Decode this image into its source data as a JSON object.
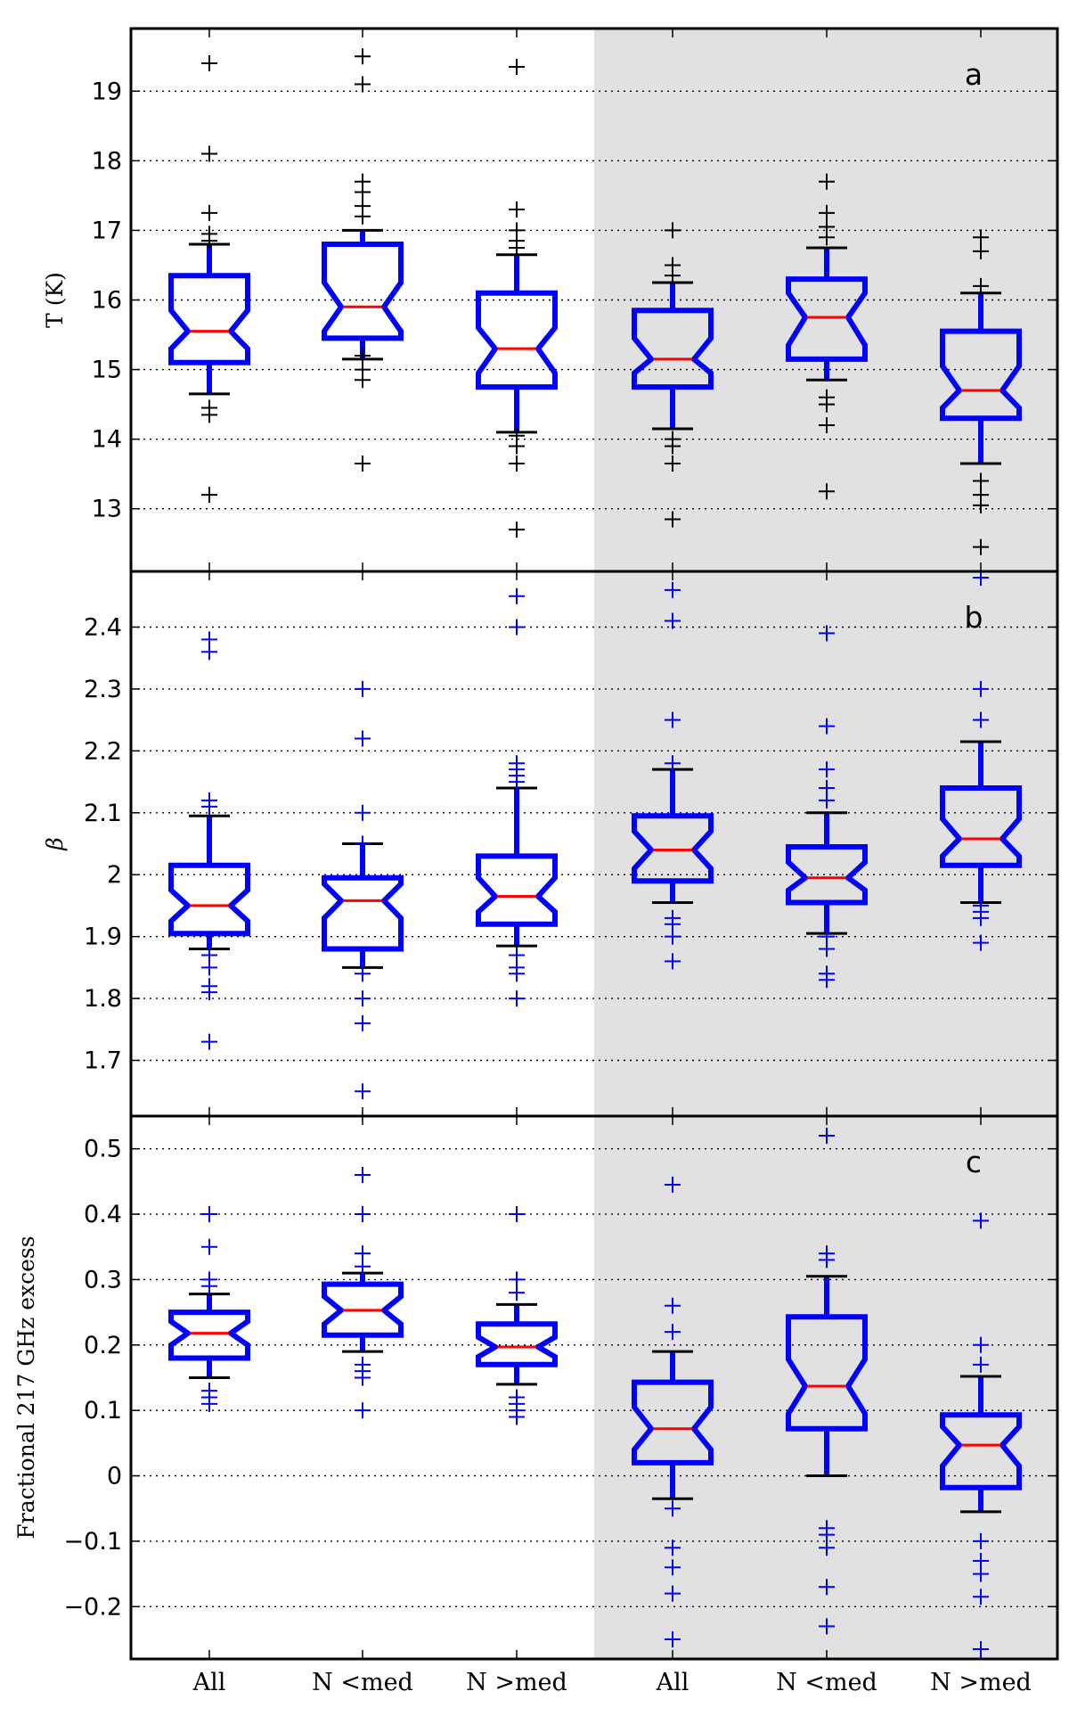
{
  "chart_data": [
    {
      "type": "boxplot",
      "panel_label": "a",
      "ylabel": "T (K)",
      "ylim": [
        12.1,
        19.9
      ],
      "yticks": [
        13,
        14,
        15,
        16,
        17,
        18,
        19
      ],
      "categories": [
        "All",
        "N <med",
        "N >med",
        "All",
        "N <med",
        "N >med"
      ],
      "shaded_categories": [
        3,
        4,
        5
      ],
      "grid": true,
      "marker_color": "#000000",
      "boxes": [
        {
          "q1": 15.1,
          "median": 15.55,
          "q3": 16.35,
          "notch_low": 15.3,
          "notch_high": 15.85,
          "whisker_low": 14.65,
          "whisker_high": 16.8,
          "fliers": [
            19.4,
            18.1,
            17.25,
            16.95,
            16.85,
            14.45,
            14.35,
            13.2
          ]
        },
        {
          "q1": 15.45,
          "median": 15.9,
          "q3": 16.8,
          "notch_low": 15.55,
          "notch_high": 16.25,
          "whisker_low": 15.15,
          "whisker_high": 17.0,
          "fliers": [
            19.5,
            19.1,
            17.7,
            17.55,
            17.35,
            17.2,
            15.2,
            15.0,
            14.85,
            13.65
          ]
        },
        {
          "q1": 14.75,
          "median": 15.3,
          "q3": 16.1,
          "notch_low": 14.95,
          "notch_high": 15.6,
          "whisker_low": 14.1,
          "whisker_high": 16.65,
          "fliers": [
            19.35,
            17.3,
            17.0,
            16.85,
            16.75,
            14.05,
            13.9,
            13.65,
            12.7
          ]
        },
        {
          "q1": 14.75,
          "median": 15.15,
          "q3": 15.85,
          "notch_low": 14.95,
          "notch_high": 15.45,
          "whisker_low": 14.15,
          "whisker_high": 16.25,
          "fliers": [
            17.0,
            16.5,
            16.35,
            14.0,
            13.9,
            13.65,
            12.85
          ]
        },
        {
          "q1": 15.15,
          "median": 15.75,
          "q3": 16.3,
          "notch_low": 15.35,
          "notch_high": 16.1,
          "whisker_low": 14.85,
          "whisker_high": 16.75,
          "fliers": [
            17.7,
            17.25,
            17.05,
            16.9,
            14.6,
            14.5,
            14.2,
            13.25
          ]
        },
        {
          "q1": 14.3,
          "median": 14.7,
          "q3": 15.55,
          "notch_low": 14.45,
          "notch_high": 15.05,
          "whisker_low": 13.65,
          "whisker_high": 16.1,
          "fliers": [
            16.9,
            16.7,
            16.2,
            13.4,
            13.2,
            13.05,
            12.45
          ]
        }
      ]
    },
    {
      "type": "boxplot",
      "panel_label": "b",
      "ylabel": "β",
      "ylim": [
        1.61,
        2.49
      ],
      "yticks": [
        1.7,
        1.8,
        1.9,
        2.0,
        2.1,
        2.2,
        2.3,
        2.4
      ],
      "categories": [
        "All",
        "N <med",
        "N >med",
        "All",
        "N <med",
        "N >med"
      ],
      "shaded_categories": [
        3,
        4,
        5
      ],
      "grid": true,
      "marker_color": "#0000ff",
      "boxes": [
        {
          "q1": 1.905,
          "median": 1.95,
          "q3": 2.015,
          "notch_low": 1.925,
          "notch_high": 1.975,
          "whisker_low": 1.88,
          "whisker_high": 2.095,
          "fliers": [
            2.38,
            2.36,
            2.12,
            2.11,
            1.87,
            1.85,
            1.82,
            1.81,
            1.73
          ]
        },
        {
          "q1": 1.88,
          "median": 1.958,
          "q3": 1.995,
          "notch_low": 1.93,
          "notch_high": 1.985,
          "whisker_low": 1.85,
          "whisker_high": 2.05,
          "fliers": [
            2.3,
            2.22,
            2.1,
            2.05,
            1.84,
            1.8,
            1.76,
            1.65
          ]
        },
        {
          "q1": 1.92,
          "median": 1.965,
          "q3": 2.03,
          "notch_low": 1.94,
          "notch_high": 1.995,
          "whisker_low": 1.885,
          "whisker_high": 2.14,
          "fliers": [
            2.45,
            2.4,
            2.18,
            2.17,
            2.16,
            2.15,
            1.87,
            1.85,
            1.84,
            1.8
          ]
        },
        {
          "q1": 1.99,
          "median": 2.04,
          "q3": 2.095,
          "notch_low": 2.01,
          "notch_high": 2.07,
          "whisker_low": 1.955,
          "whisker_high": 2.17,
          "fliers": [
            2.46,
            2.41,
            2.25,
            2.18,
            1.93,
            1.92,
            1.9,
            1.86
          ]
        },
        {
          "q1": 1.955,
          "median": 1.995,
          "q3": 2.045,
          "notch_low": 1.975,
          "notch_high": 2.02,
          "whisker_low": 1.905,
          "whisker_high": 2.1,
          "fliers": [
            2.39,
            2.24,
            2.17,
            2.14,
            2.12,
            1.9,
            1.88,
            1.84,
            1.83
          ]
        },
        {
          "q1": 2.015,
          "median": 2.058,
          "q3": 2.14,
          "notch_low": 2.03,
          "notch_high": 2.09,
          "whisker_low": 1.955,
          "whisker_high": 2.215,
          "fliers": [
            2.48,
            2.3,
            2.25,
            1.95,
            1.94,
            1.93,
            1.89
          ]
        }
      ]
    },
    {
      "type": "boxplot",
      "panel_label": "c",
      "ylabel": "Fractional 217 GHz excess",
      "ylim": [
        -0.28,
        0.55
      ],
      "yticks": [
        -0.2,
        -0.1,
        0.0,
        0.1,
        0.2,
        0.3,
        0.4,
        0.5
      ],
      "categories": [
        "All",
        "N <med",
        "N >med",
        "All",
        "N <med",
        "N >med"
      ],
      "shaded_categories": [
        3,
        4,
        5
      ],
      "grid": true,
      "marker_color": "#0000ff",
      "boxes": [
        {
          "q1": 0.18,
          "median": 0.218,
          "q3": 0.25,
          "notch_low": 0.2,
          "notch_high": 0.236,
          "whisker_low": 0.15,
          "whisker_high": 0.278,
          "fliers": [
            0.4,
            0.35,
            0.3,
            0.29,
            0.13,
            0.12,
            0.11
          ]
        },
        {
          "q1": 0.215,
          "median": 0.253,
          "q3": 0.293,
          "notch_low": 0.232,
          "notch_high": 0.274,
          "whisker_low": 0.19,
          "whisker_high": 0.31,
          "fliers": [
            0.46,
            0.4,
            0.34,
            0.32,
            0.17,
            0.16,
            0.15,
            0.1
          ]
        },
        {
          "q1": 0.17,
          "median": 0.197,
          "q3": 0.232,
          "notch_low": 0.182,
          "notch_high": 0.212,
          "whisker_low": 0.14,
          "whisker_high": 0.262,
          "fliers": [
            0.4,
            0.3,
            0.28,
            0.12,
            0.11,
            0.1,
            0.09
          ]
        },
        {
          "q1": 0.02,
          "median": 0.072,
          "q3": 0.143,
          "notch_low": 0.04,
          "notch_high": 0.105,
          "whisker_low": -0.035,
          "whisker_high": 0.19,
          "fliers": [
            0.445,
            0.26,
            0.22,
            -0.05,
            -0.11,
            -0.14,
            -0.18,
            -0.25
          ]
        },
        {
          "q1": 0.072,
          "median": 0.137,
          "q3": 0.243,
          "notch_low": 0.095,
          "notch_high": 0.178,
          "whisker_low": 0.0,
          "whisker_high": 0.305,
          "fliers": [
            0.52,
            0.34,
            0.33,
            -0.08,
            -0.09,
            -0.11,
            -0.17,
            -0.23
          ]
        },
        {
          "q1": -0.018,
          "median": 0.047,
          "q3": 0.093,
          "notch_low": 0.015,
          "notch_high": 0.075,
          "whisker_low": -0.055,
          "whisker_high": 0.152,
          "fliers": [
            0.39,
            0.2,
            0.17,
            -0.1,
            -0.13,
            -0.15,
            -0.185,
            -0.265
          ]
        }
      ]
    }
  ]
}
